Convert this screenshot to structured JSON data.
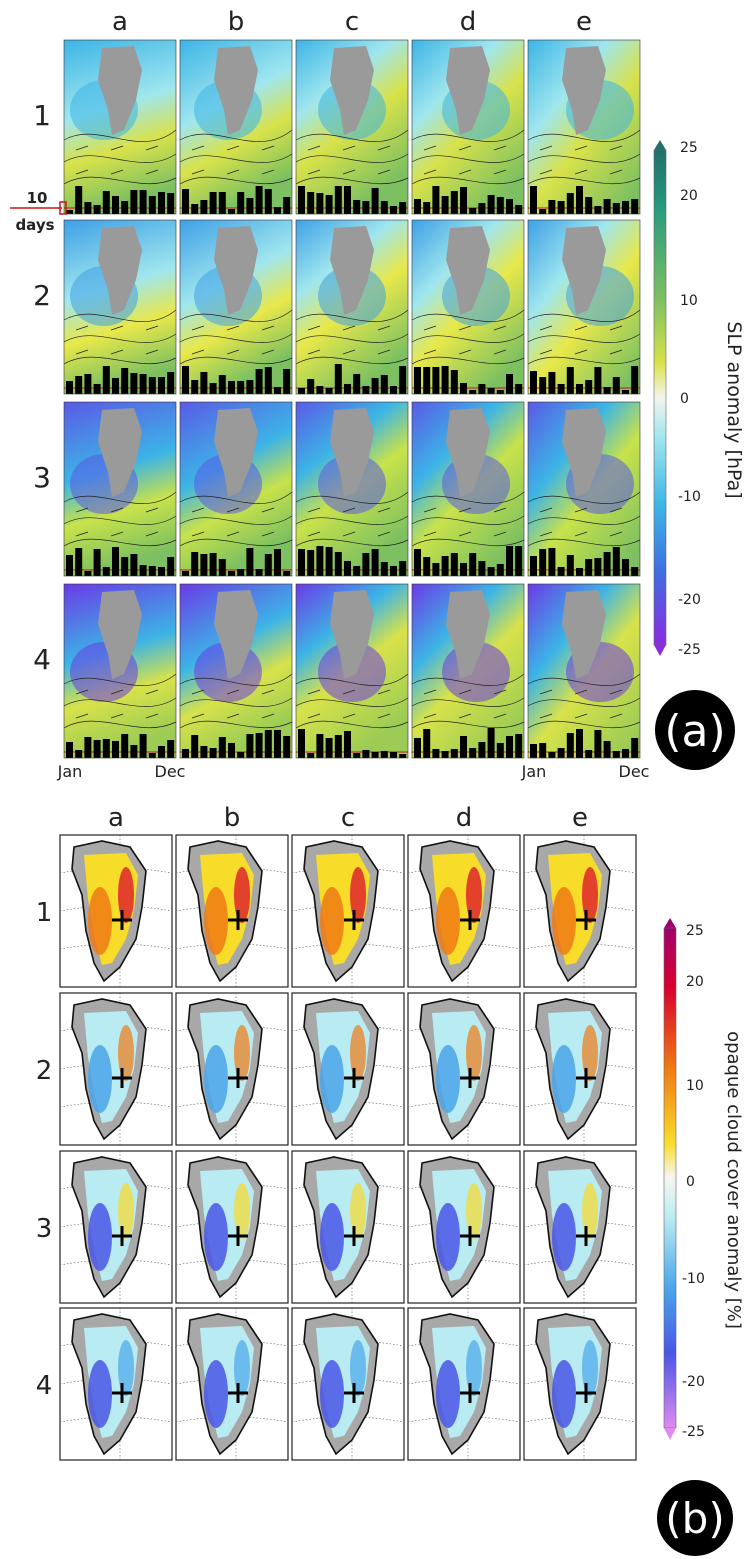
{
  "panel_a": {
    "columns": [
      "a",
      "b",
      "c",
      "d",
      "e"
    ],
    "rows": [
      "1",
      "2",
      "3",
      "4"
    ],
    "colorbar": {
      "label": "SLP anomaly [hPa]",
      "ticks": [
        "25",
        "20",
        "10",
        "0",
        "-10",
        "-20",
        "-25"
      ]
    },
    "days_label_num": "10",
    "days_label_unit": "days",
    "month_start": "Jan",
    "month_end": "Dec",
    "panel_tag": "(a)"
  },
  "panel_b": {
    "columns": [
      "a",
      "b",
      "c",
      "d",
      "e"
    ],
    "rows": [
      "1",
      "2",
      "3",
      "4"
    ],
    "colorbar": {
      "label": "opaque cloud cover anomaly [%]",
      "ticks": [
        "25",
        "20",
        "10",
        "0",
        "-10",
        "-20",
        "-25"
      ]
    },
    "panel_tag": "(b)"
  }
}
